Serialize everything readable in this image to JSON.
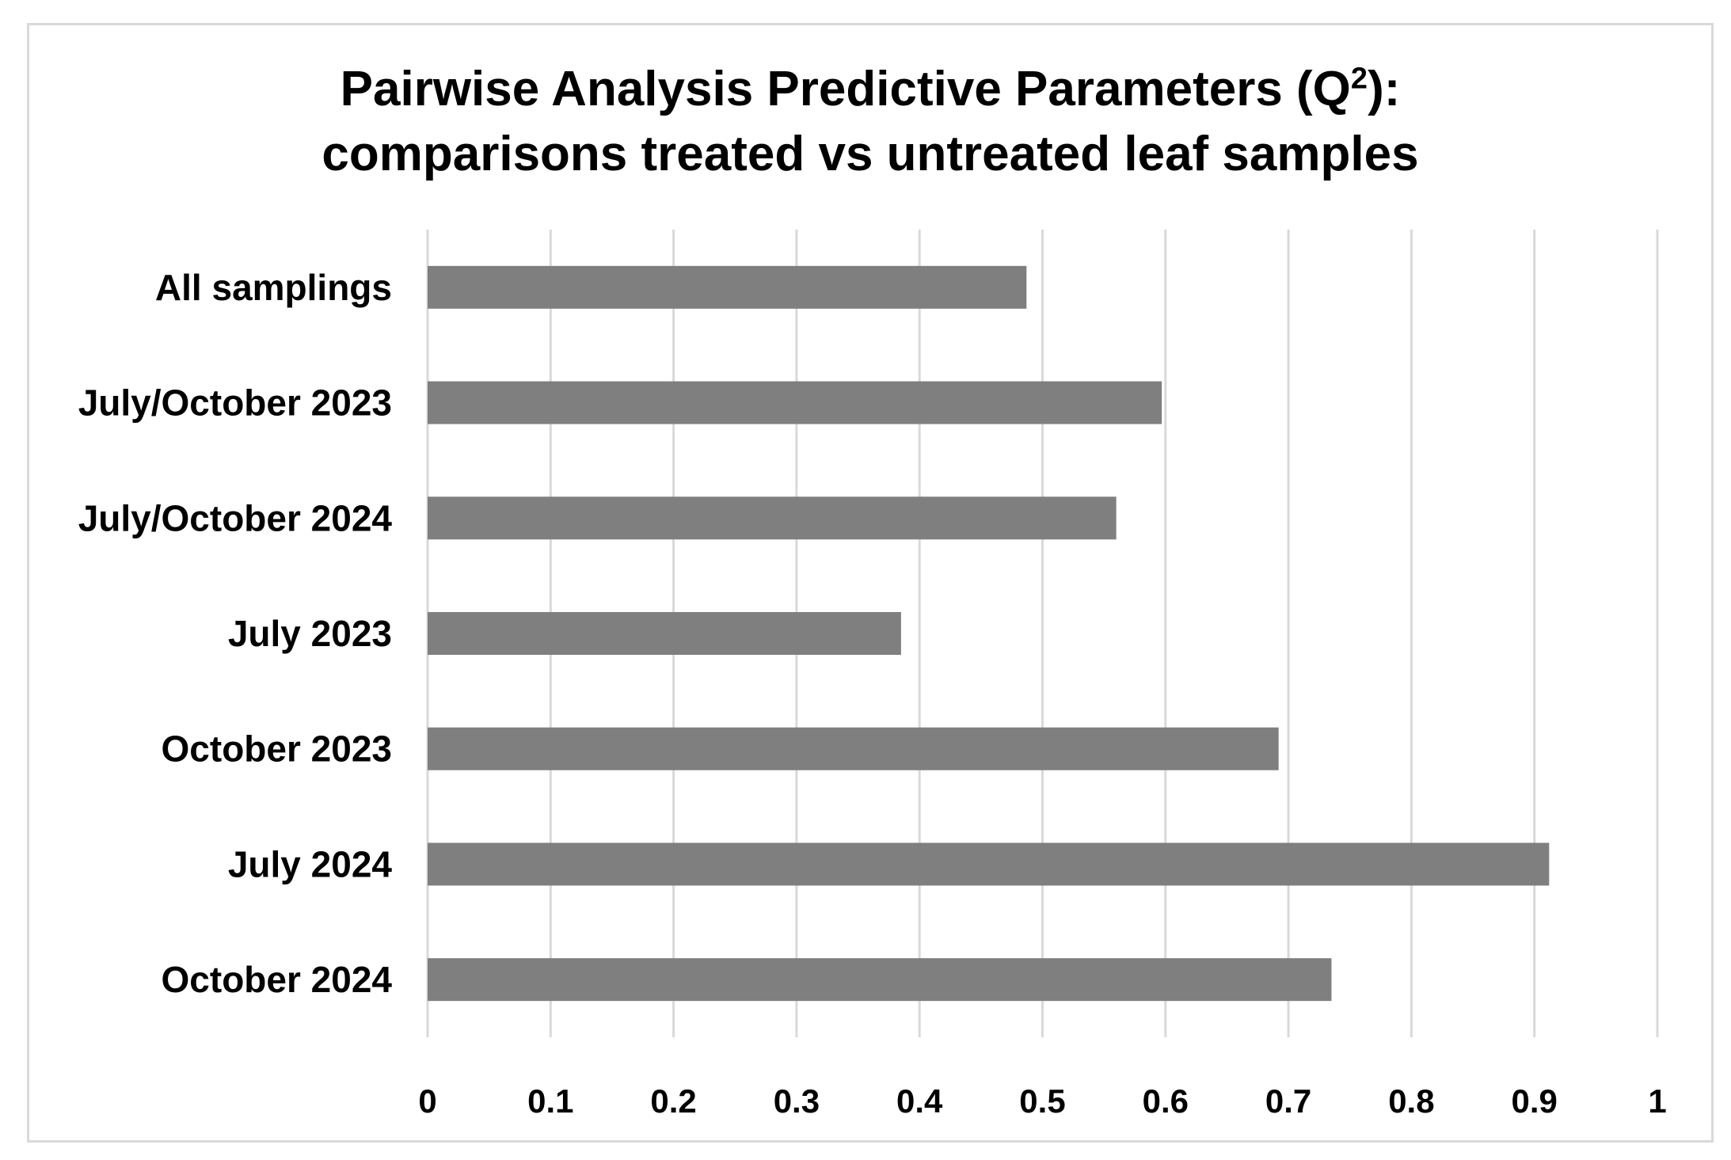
{
  "chart_data": {
    "type": "bar",
    "orientation": "horizontal",
    "title_line1": "Pairwise Analysis Predictive Parameters (Q",
    "title_sup": "2",
    "title_line1_end": "):",
    "title_line2": "comparisons treated vs untreated leaf samples",
    "categories": [
      "All samplings",
      "July/October 2023",
      "July/October 2024",
      "July 2023",
      "October 2023",
      "July 2024",
      "October 2024"
    ],
    "values": [
      0.487,
      0.597,
      0.56,
      0.385,
      0.692,
      0.912,
      0.735
    ],
    "xlim": [
      0,
      1
    ],
    "xticks": [
      "0",
      "0.1",
      "0.2",
      "0.3",
      "0.4",
      "0.5",
      "0.6",
      "0.7",
      "0.8",
      "0.9",
      "1"
    ],
    "xlabel": "",
    "ylabel": "",
    "grid": "vertical",
    "legend": "none",
    "bar_color": "#7f7f7f",
    "grid_color": "#d9d9d9"
  }
}
